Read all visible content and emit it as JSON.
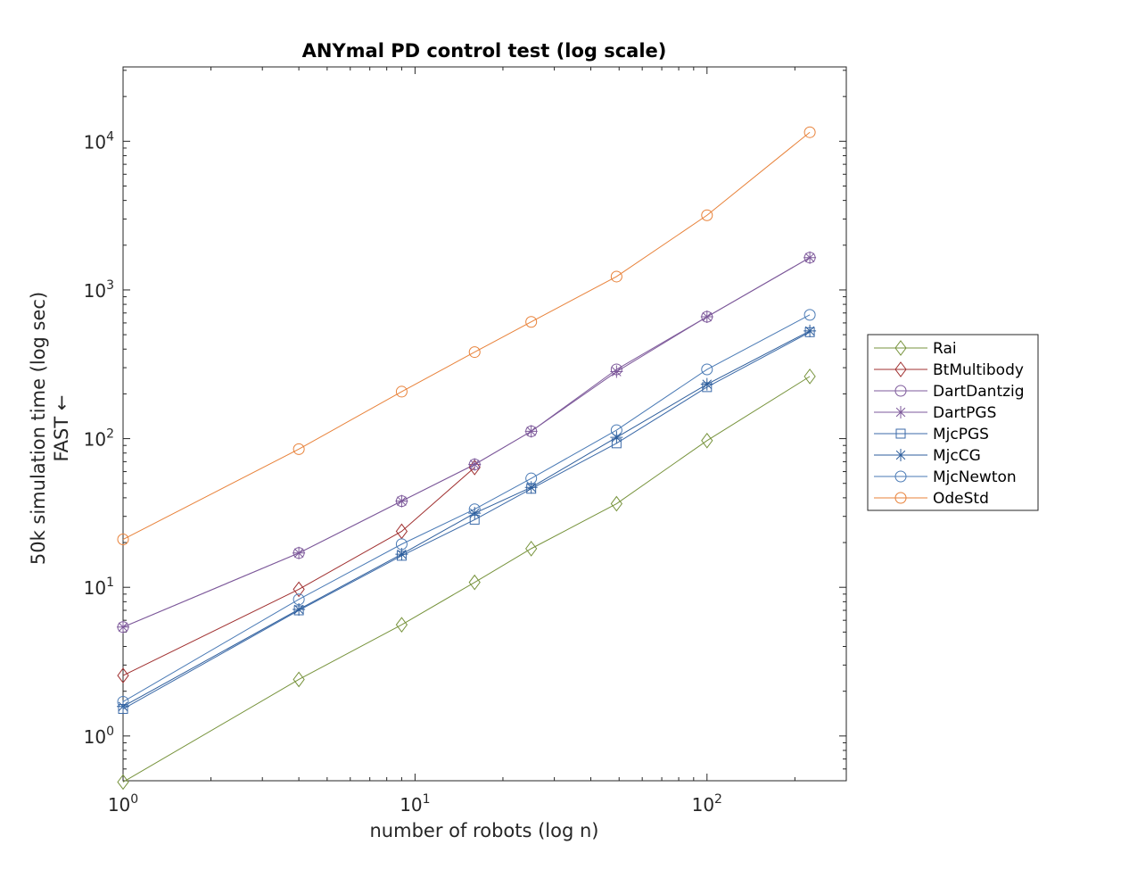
{
  "chart_data": {
    "type": "line",
    "title": "ANYmal PD control test (log scale)",
    "xlabel": "number of robots (log n)",
    "ylabel_lines": [
      "50k simulation time (log sec)",
      "FAST ←"
    ],
    "x_scale": "log",
    "y_scale": "log",
    "xlim": [
      1,
      300
    ],
    "ylim": [
      0.5,
      31623
    ],
    "x_ticks": [
      {
        "value": 1,
        "base": "10",
        "exp": "0"
      },
      {
        "value": 10,
        "base": "10",
        "exp": "1"
      },
      {
        "value": 100,
        "base": "10",
        "exp": "2"
      }
    ],
    "y_ticks": [
      {
        "value": 1,
        "base": "10",
        "exp": "0"
      },
      {
        "value": 10,
        "base": "10",
        "exp": "1"
      },
      {
        "value": 100,
        "base": "10",
        "exp": "2"
      },
      {
        "value": 1000,
        "base": "10",
        "exp": "3"
      },
      {
        "value": 10000,
        "base": "10",
        "exp": "4"
      }
    ],
    "grid": false,
    "legend_position": "right",
    "x": [
      1,
      4,
      9,
      16,
      25,
      49,
      100,
      225
    ],
    "series": [
      {
        "name": "Rai",
        "color": "#77933c",
        "marker": "diamond",
        "values": [
          0.49,
          2.4,
          5.6,
          10.8,
          18.2,
          36.5,
          97,
          262
        ]
      },
      {
        "name": "BtMultibody",
        "color": "#a03030",
        "marker": "diamond",
        "values": [
          2.55,
          9.7,
          23.8,
          64,
          null,
          null,
          null,
          null
        ]
      },
      {
        "name": "DartDantzig",
        "color": "#7e5a9b",
        "marker": "circle",
        "values": [
          5.4,
          17,
          38,
          67,
          112,
          292,
          660,
          1650
        ]
      },
      {
        "name": "DartPGS",
        "color": "#7e5a9b",
        "marker": "asterisk",
        "values": [
          5.4,
          17,
          38,
          67,
          112,
          282,
          660,
          1650
        ]
      },
      {
        "name": "MjcPGS",
        "color": "#3b6aa8",
        "marker": "square",
        "values": [
          1.52,
          7.0,
          16.3,
          28.5,
          46,
          93,
          222,
          520
        ]
      },
      {
        "name": "MjcCG",
        "color": "#2e5e9c",
        "marker": "asterisk",
        "values": [
          1.58,
          7.1,
          16.7,
          31.5,
          47,
          102,
          232,
          530
        ]
      },
      {
        "name": "MjcNewton",
        "color": "#4a7ab5",
        "marker": "circle",
        "values": [
          1.7,
          8.3,
          19.5,
          33.5,
          54,
          114,
          292,
          680
        ]
      },
      {
        "name": "OdeStd",
        "color": "#e8823a",
        "marker": "circle",
        "values": [
          21,
          85,
          207,
          382,
          610,
          1230,
          3180,
          11500
        ]
      }
    ]
  }
}
